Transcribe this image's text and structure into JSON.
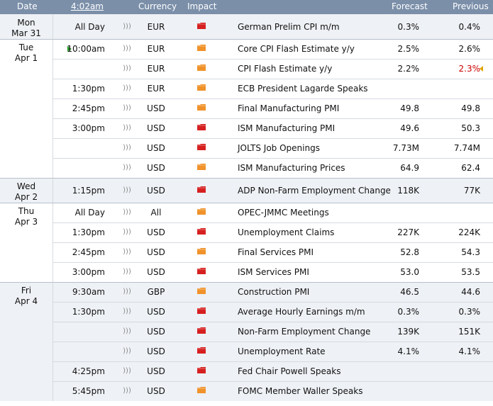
{
  "header": {
    "date": "Date",
    "time": "4:02am",
    "currency": "Currency",
    "impact": "Impact",
    "forecast": "Forecast",
    "previous": "Previous"
  },
  "colors": {
    "header_bg": "#7b8fa9",
    "group_shaded_bg": "#eef1f5",
    "high_impact": "#d62020",
    "medium_impact": "#f0922a",
    "revised_text": "#cc0000",
    "revised_arrow": "#e0a400",
    "current_marker": "#2a9a2a"
  },
  "groups": [
    {
      "day": "Mon",
      "date": "Mar 31",
      "shaded": true,
      "rows": [
        {
          "time": "All Day",
          "currency": "EUR",
          "impact": "high",
          "event": "German Prelim CPI m/m",
          "forecast": "0.3%",
          "previous": "0.4%"
        }
      ]
    },
    {
      "day": "Tue",
      "date": "Apr 1",
      "shaded": false,
      "rows": [
        {
          "time": "10:00am",
          "current": true,
          "currency": "EUR",
          "impact": "medium",
          "event": "Core CPI Flash Estimate y/y",
          "forecast": "2.5%",
          "previous": "2.6%"
        },
        {
          "time": "",
          "currency": "EUR",
          "impact": "medium",
          "event": "CPI Flash Estimate y/y",
          "forecast": "2.2%",
          "previous": "2.3%",
          "revised": true
        },
        {
          "time": "1:30pm",
          "currency": "EUR",
          "impact": "medium",
          "event": "ECB President Lagarde Speaks",
          "forecast": "",
          "previous": ""
        },
        {
          "time": "2:45pm",
          "currency": "USD",
          "impact": "medium",
          "event": "Final Manufacturing PMI",
          "forecast": "49.8",
          "previous": "49.8"
        },
        {
          "time": "3:00pm",
          "currency": "USD",
          "impact": "high",
          "event": "ISM Manufacturing PMI",
          "forecast": "49.6",
          "previous": "50.3"
        },
        {
          "time": "",
          "currency": "USD",
          "impact": "high",
          "event": "JOLTS Job Openings",
          "forecast": "7.73M",
          "previous": "7.74M"
        },
        {
          "time": "",
          "currency": "USD",
          "impact": "medium",
          "event": "ISM Manufacturing Prices",
          "forecast": "64.9",
          "previous": "62.4"
        }
      ]
    },
    {
      "day": "Wed",
      "date": "Apr 2",
      "shaded": true,
      "rows": [
        {
          "time": "1:15pm",
          "currency": "USD",
          "impact": "high",
          "event": "ADP Non-Farm Employment Change",
          "forecast": "118K",
          "previous": "77K"
        }
      ]
    },
    {
      "day": "Thu",
      "date": "Apr 3",
      "shaded": false,
      "rows": [
        {
          "time": "All Day",
          "currency": "All",
          "impact": "medium",
          "event": "OPEC-JMMC Meetings",
          "forecast": "",
          "previous": ""
        },
        {
          "time": "1:30pm",
          "currency": "USD",
          "impact": "high",
          "event": "Unemployment Claims",
          "forecast": "227K",
          "previous": "224K"
        },
        {
          "time": "2:45pm",
          "currency": "USD",
          "impact": "medium",
          "event": "Final Services PMI",
          "forecast": "52.8",
          "previous": "54.3"
        },
        {
          "time": "3:00pm",
          "currency": "USD",
          "impact": "high",
          "event": "ISM Services PMI",
          "forecast": "53.0",
          "previous": "53.5"
        }
      ]
    },
    {
      "day": "Fri",
      "date": "Apr 4",
      "shaded": true,
      "rows": [
        {
          "time": "9:30am",
          "currency": "GBP",
          "impact": "medium",
          "event": "Construction PMI",
          "forecast": "46.5",
          "previous": "44.6"
        },
        {
          "time": "1:30pm",
          "currency": "USD",
          "impact": "high",
          "event": "Average Hourly Earnings m/m",
          "forecast": "0.3%",
          "previous": "0.3%"
        },
        {
          "time": "",
          "currency": "USD",
          "impact": "high",
          "event": "Non-Farm Employment Change",
          "forecast": "139K",
          "previous": "151K"
        },
        {
          "time": "",
          "currency": "USD",
          "impact": "high",
          "event": "Unemployment Rate",
          "forecast": "4.1%",
          "previous": "4.1%"
        },
        {
          "time": "4:25pm",
          "currency": "USD",
          "impact": "high",
          "event": "Fed Chair Powell Speaks",
          "forecast": "",
          "previous": ""
        },
        {
          "time": "5:45pm",
          "currency": "USD",
          "impact": "medium",
          "event": "FOMC Member Waller Speaks",
          "forecast": "",
          "previous": ""
        }
      ]
    }
  ]
}
